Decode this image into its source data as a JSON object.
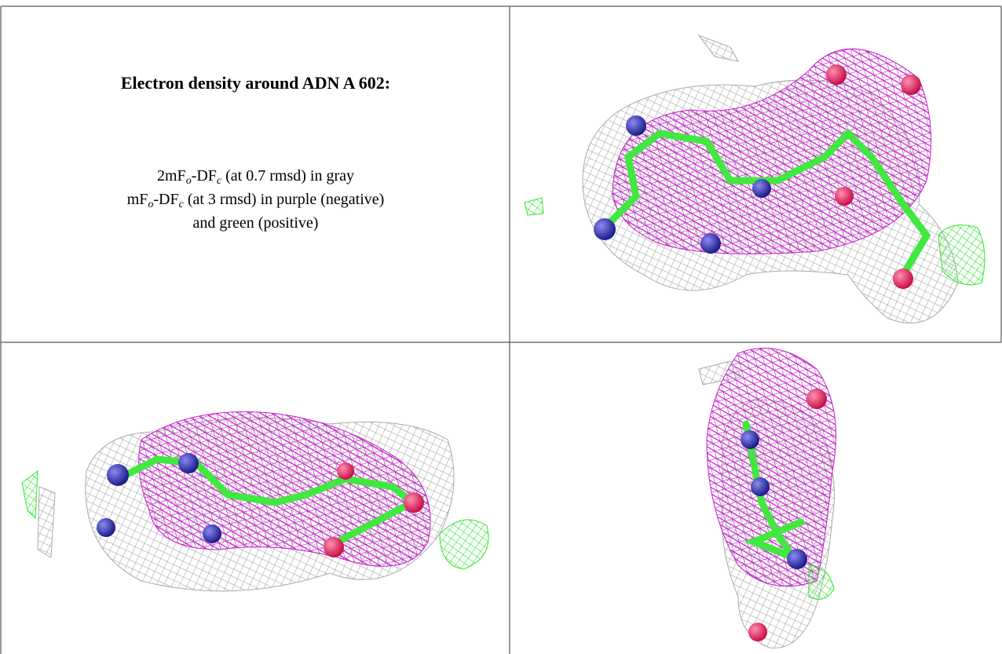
{
  "figure": {
    "title": "Electron density around ADN A 602:",
    "caption": [
      [
        "2mF",
        "o",
        "-DF",
        "c",
        " (at 0.7 rmsd) in gray"
      ],
      [
        "mF",
        "o",
        "-DF",
        "c",
        " (at 3 rmsd) in purple (negative)"
      ],
      [
        "and green (positive)"
      ]
    ]
  }
}
